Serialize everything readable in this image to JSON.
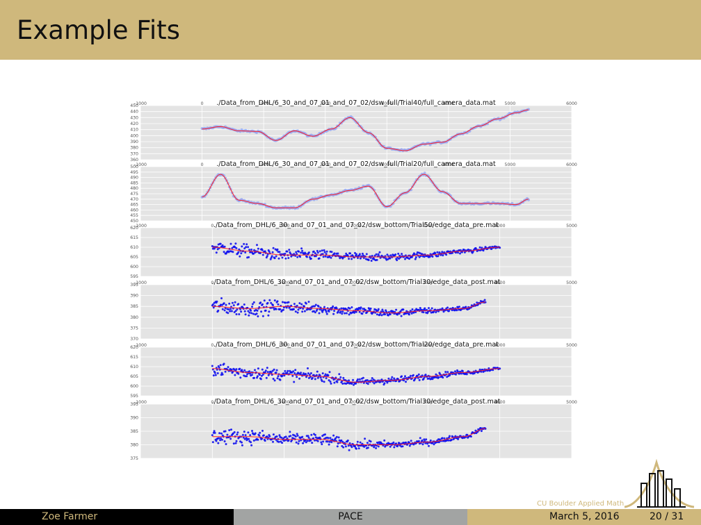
{
  "slide": {
    "title": "Example Fits",
    "footer": {
      "author": "Zoe Farmer",
      "short_title": "PACE",
      "date": "March 5, 2016",
      "page": "20 / 31"
    },
    "logo_text": "CU Boulder Applied Math"
  },
  "colors": {
    "banner": "#cfb87c",
    "points": "#1010ee",
    "fit": "#ff2020",
    "panel_bg": "#e4e4e4"
  },
  "chart_data": [
    {
      "type": "scatter",
      "title": "./Data_from_DHL/6_30_and_07_01_and_07_02/dsw_full/Trial40/full_camera_data.mat",
      "ylim": [
        360,
        450
      ],
      "yticks": [
        "450",
        "440",
        "430",
        "420",
        "410",
        "400",
        "390",
        "380",
        "370",
        "360"
      ],
      "xlim": [
        -1000,
        6000
      ],
      "xticks": [
        "-1000",
        "0",
        "1000",
        "2000",
        "3000",
        "4000",
        "5000",
        "6000"
      ],
      "grid": true,
      "x": [
        0,
        300,
        600,
        900,
        1200,
        1500,
        1800,
        2100,
        2400,
        2700,
        3000,
        3300,
        3600,
        3900,
        4200,
        4500,
        4800,
        5100,
        5300
      ],
      "y": [
        411,
        415,
        408,
        407,
        392,
        408,
        399,
        411,
        430,
        405,
        379,
        375,
        386,
        389,
        403,
        416,
        428,
        438,
        443
      ]
    },
    {
      "type": "scatter",
      "title": "./Data_from_DHL/6_30_and_07_01_and_07_02/dsw_full/Trial20/full_camera_data.mat",
      "ylim": [
        450,
        500
      ],
      "yticks": [
        "500",
        "495",
        "490",
        "485",
        "480",
        "475",
        "470",
        "465",
        "460",
        "455",
        "450"
      ],
      "xlim": [
        -1000,
        6000
      ],
      "xticks": [
        "-1000",
        "0",
        "1000",
        "2000",
        "3000",
        "4000",
        "5000",
        "6000"
      ],
      "grid": true,
      "x": [
        0,
        300,
        600,
        900,
        1200,
        1500,
        1800,
        2100,
        2400,
        2700,
        3000,
        3300,
        3600,
        3900,
        4200,
        4500,
        4800,
        5100,
        5300
      ],
      "y": [
        472,
        493,
        469,
        466,
        462,
        462,
        470,
        474,
        478,
        482,
        463,
        476,
        493,
        477,
        466,
        466,
        466,
        465,
        470
      ]
    },
    {
      "type": "scatter",
      "title": "./Data_from_DHL/6_30_and_07_01_and_07_02/dsw_bottom/Trial50/edge_data_pre.mat",
      "ylim": [
        595,
        620
      ],
      "yticks": [
        "620",
        "615",
        "610",
        "605",
        "600",
        "595"
      ],
      "xlim": [
        -1000,
        5000
      ],
      "xticks": [
        "-1000",
        "0",
        "1000",
        "2000",
        "3000",
        "4000",
        "5000"
      ],
      "grid": true,
      "x": [
        0,
        500,
        1000,
        1500,
        2000,
        2500,
        3000,
        3500,
        4000
      ],
      "y": [
        610,
        608,
        606,
        606,
        605,
        605,
        606,
        608,
        610
      ]
    },
    {
      "type": "scatter",
      "title": "./Data_from_DHL/6_30_and_07_01_and_07_02/dsw_bottom/Trial30/edge_data_post.mat",
      "ylim": [
        370,
        395
      ],
      "yticks": [
        "395",
        "390",
        "385",
        "380",
        "375",
        "370"
      ],
      "xlim": [
        -1000,
        5000
      ],
      "xticks": [
        "-1000",
        "0",
        "1000",
        "2000",
        "3000",
        "4000",
        "5000"
      ],
      "grid": true,
      "x": [
        0,
        500,
        1000,
        1500,
        2000,
        2500,
        3000,
        3500,
        3800
      ],
      "y": [
        385,
        384,
        385,
        384,
        383,
        382,
        383,
        384,
        387
      ]
    },
    {
      "type": "scatter",
      "title": "./Data_from_DHL/6_30_and_07_01_and_07_02/dsw_bottom/Trial20/edge_data_pre.mat",
      "ylim": [
        595,
        620
      ],
      "yticks": [
        "620",
        "615",
        "610",
        "605",
        "600",
        "595"
      ],
      "xlim": [
        -1000,
        5000
      ],
      "xticks": [
        "-1000",
        "0",
        "1000",
        "2000",
        "3000",
        "4000",
        "5000"
      ],
      "grid": true,
      "x": [
        0,
        500,
        1000,
        1500,
        2000,
        2500,
        3000,
        3500,
        4000
      ],
      "y": [
        609,
        607,
        606,
        605,
        602,
        603,
        605,
        607,
        609
      ]
    },
    {
      "type": "scatter",
      "title": "./Data_from_DHL/6_30_and_07_01_and_07_02/dsw_bottom/Trial30/edge_data_post.mat",
      "ylim": [
        375,
        395
      ],
      "yticks": [
        "395",
        "390",
        "385",
        "380",
        "375"
      ],
      "xlim": [
        -1000,
        5000
      ],
      "xticks": [
        "-1000",
        "0",
        "1000",
        "2000",
        "3000",
        "4000",
        "5000"
      ],
      "grid": true,
      "x": [
        0,
        500,
        1000,
        1500,
        2000,
        2500,
        3000,
        3500,
        3800
      ],
      "y": [
        383,
        383,
        382,
        382,
        380,
        380,
        381,
        383,
        386
      ]
    }
  ]
}
